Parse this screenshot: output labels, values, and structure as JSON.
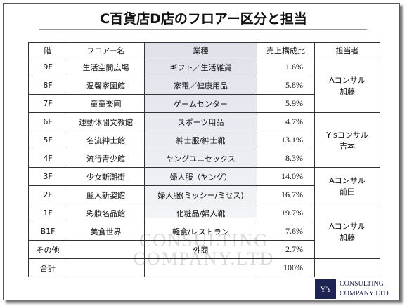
{
  "title": "C百貨店D店のフロアー区分と担当",
  "table": {
    "header": [
      "階",
      "フロアー名",
      "業種",
      "売上構成比",
      "担当者"
    ],
    "groups": [
      {
        "manager": [
          "Aコンサル",
          "加藤"
        ],
        "rows": [
          {
            "floor": "9F",
            "name": "生活空間広場",
            "category": "ギフト／生活雑貨",
            "share": "1.6%"
          },
          {
            "floor": "8F",
            "name": "温馨家園館",
            "category": "家電／健康用品",
            "share": "5.8%"
          },
          {
            "floor": "7F",
            "name": "童童楽園",
            "category": "ゲームセンター",
            "share": "5.9%"
          }
        ]
      },
      {
        "manager": [
          "Y'sコンサル",
          "吉本"
        ],
        "rows": [
          {
            "floor": "6F",
            "name": "運動休閒文教館",
            "category": "スポーツ用品",
            "share": "4.7%"
          },
          {
            "floor": "5F",
            "name": "名流紳士館",
            "category": "紳士服/紳士靴",
            "share": "13.1%"
          },
          {
            "floor": "4F",
            "name": "流行青少館",
            "category": "ヤングユニセックス",
            "share": "8.3%"
          }
        ]
      },
      {
        "manager": [
          "Aコンサル",
          "前田"
        ],
        "rows": [
          {
            "floor": "3F",
            "name": "少女新潮街",
            "category": "婦人服（ヤング）",
            "share": "14.0%"
          },
          {
            "floor": "2F",
            "name": "麗人新姿館",
            "category": "婦人服(ミッシー/ミセス)",
            "share": "16.7%"
          }
        ]
      },
      {
        "manager": [
          "Aコンサル",
          "加藤"
        ],
        "rows": [
          {
            "floor": "1F",
            "name": "彩妝名品館",
            "category": "化粧品/婦人靴",
            "share": "19.7%"
          },
          {
            "floor": "B1F",
            "name": "美食世界",
            "category": "軽食/レストラン",
            "share": "7.6%"
          },
          {
            "floor": "その他",
            "category": "外商",
            "share": "2.7%"
          }
        ]
      },
      {
        "rows": [
          {
            "floor": "合計",
            "share": "100%"
          }
        ]
      }
    ]
  },
  "watermark": [
    "CONSULTING",
    "COMPANY.LTD"
  ],
  "logo": {
    "mark": "Y's",
    "lines": [
      "CONSULTING",
      "COMPANY LTD"
    ]
  }
}
